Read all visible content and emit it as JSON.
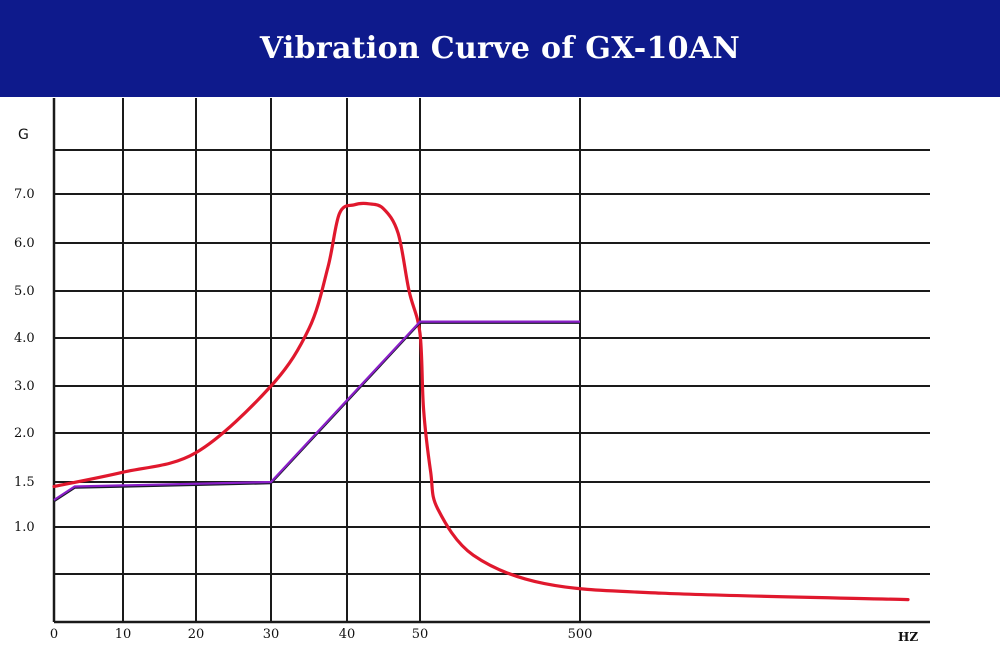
{
  "header": {
    "title": "Vibration Curve of GX-10AN"
  },
  "chart_data": {
    "type": "line",
    "title": "Vibration Curve of GX-10AN",
    "ylabel": "G",
    "xlabel": "HZ",
    "x_tick_labels": [
      "0",
      "10",
      "20",
      "30",
      "40",
      "50",
      "500"
    ],
    "y_tick_labels": [
      "1.0",
      "1.5",
      "2.0",
      "3.0",
      "4.0",
      "5.0",
      "6.0",
      "7.0"
    ],
    "grid": true,
    "colors": {
      "header_bg": "#0e1a8c",
      "grid": "#1a1a1a",
      "red_curve": "#e0182d",
      "limit_line": "#8a1fc8",
      "limit_line_under": "#1a1a2a"
    },
    "series": [
      {
        "color": "#e0182d",
        "points": [
          [
            "0",
            1.45
          ],
          [
            "10",
            1.6
          ],
          [
            "20",
            1.8
          ],
          [
            "30",
            3.0
          ],
          [
            "35",
            4.2
          ],
          [
            "37.5",
            5.5
          ],
          [
            "39",
            6.6
          ],
          [
            "41",
            6.78
          ],
          [
            "43",
            6.8
          ],
          [
            "45",
            6.7
          ],
          [
            "47",
            6.2
          ],
          [
            "48.5",
            5.0
          ],
          [
            "50",
            4.1
          ],
          [
            "60",
            2.5
          ],
          [
            "80",
            1.6
          ],
          [
            "100",
            1.2
          ],
          [
            "200",
            0.7
          ],
          [
            "400",
            0.35
          ],
          [
            "600",
            0.2
          ],
          [
            "900",
            0.1
          ]
        ]
      },
      {
        "color": "#8a1fc8",
        "points": [
          [
            "0",
            1.3
          ],
          [
            "3",
            1.45
          ],
          [
            "30",
            1.5
          ],
          [
            "50",
            4.35
          ],
          [
            "500",
            4.35
          ]
        ]
      }
    ]
  }
}
